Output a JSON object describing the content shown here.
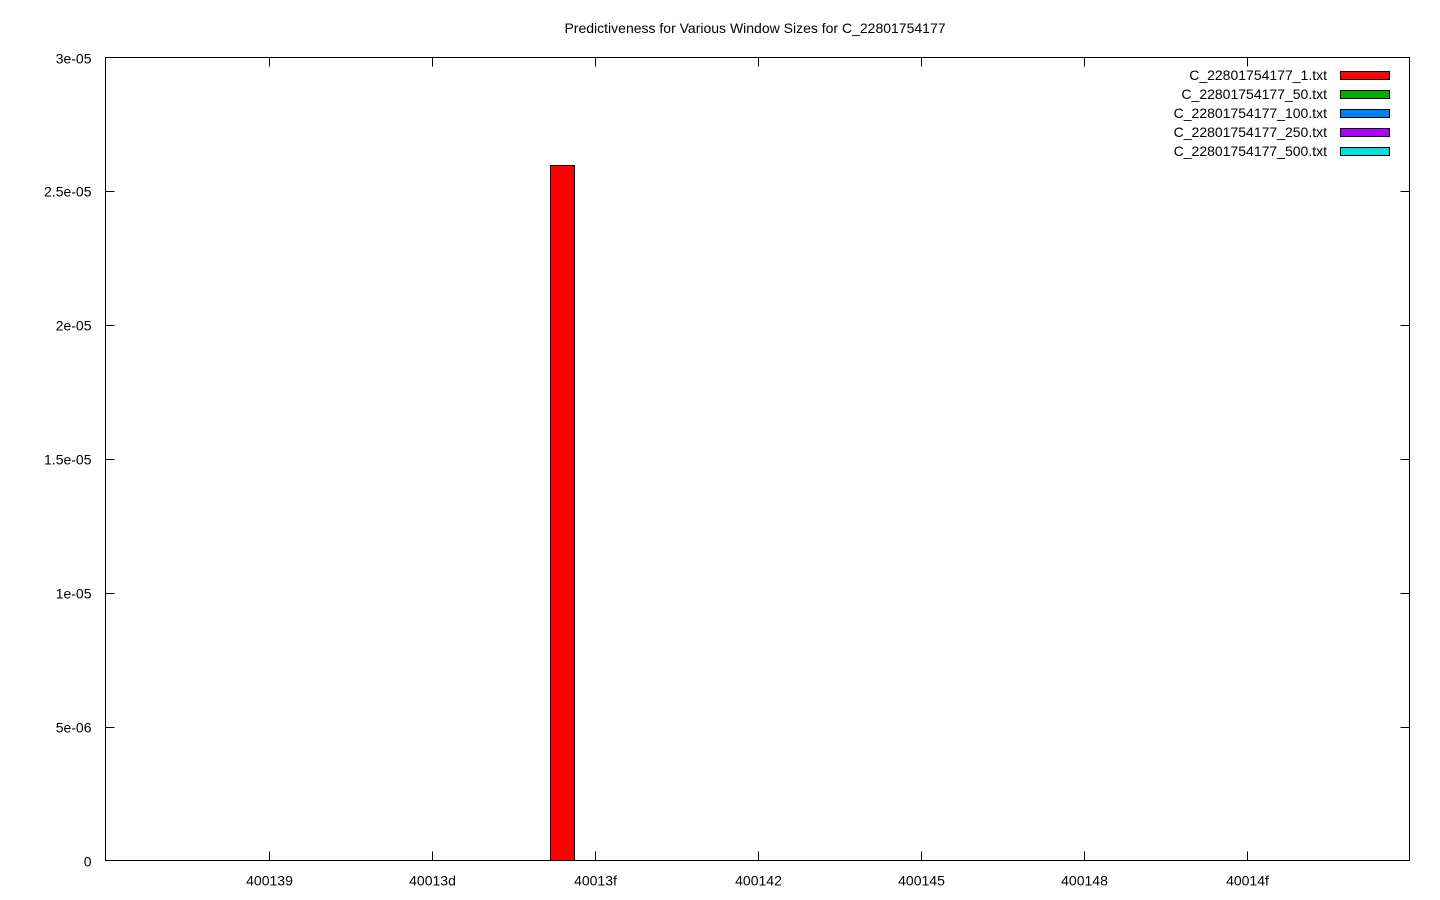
{
  "chart_data": {
    "type": "bar",
    "title": "Predictiveness for Various Window Sizes for C_22801754177",
    "xlabel": "",
    "ylabel": "",
    "ylim": [
      0,
      3e-05
    ],
    "y_ticks": [
      "0",
      "5e-06",
      "1e-05",
      "1.5e-05",
      "2e-05",
      "2.5e-05",
      "3e-05"
    ],
    "y_tick_values": [
      0,
      5e-06,
      1e-05,
      1.5e-05,
      2e-05,
      2.5e-05,
      3e-05
    ],
    "x_ticks": [
      "400139",
      "40013d",
      "40013f",
      "400142",
      "400145",
      "400148",
      "40014f"
    ],
    "x_range": [
      0,
      8
    ],
    "x_tick_positions": [
      1,
      2,
      3,
      4,
      5,
      6,
      7
    ],
    "grid": false,
    "legend_position": "top-right",
    "series": [
      {
        "name": "C_22801754177_1.txt",
        "color": "#ff0000",
        "points": [
          {
            "x": 2.8,
            "y": 2.6e-05
          }
        ]
      },
      {
        "name": "C_22801754177_50.txt",
        "color": "#00b000",
        "points": []
      },
      {
        "name": "C_22801754177_100.txt",
        "color": "#0080ff",
        "points": []
      },
      {
        "name": "C_22801754177_250.txt",
        "color": "#b000ff",
        "points": []
      },
      {
        "name": "C_22801754177_500.txt",
        "color": "#00e0e0",
        "points": []
      }
    ]
  }
}
